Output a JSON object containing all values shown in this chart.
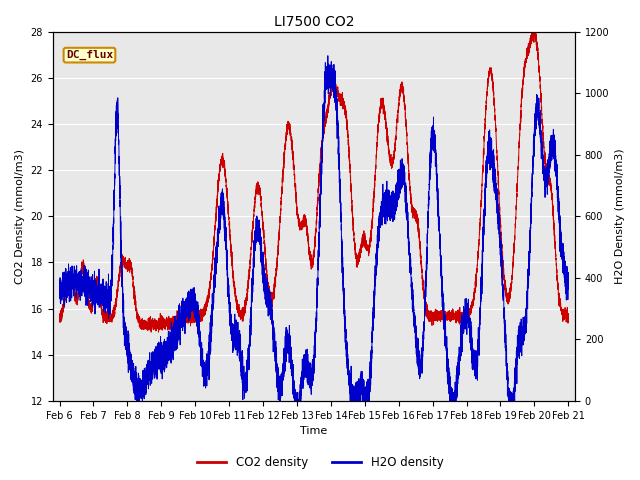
{
  "title": "LI7500 CO2",
  "xlabel": "Time",
  "ylabel_left": "CO2 Density (mmol/m3)",
  "ylabel_right": "H2O Density (mmol/m3)",
  "xlim_days": [
    5.8,
    21.2
  ],
  "ylim_left": [
    12,
    28
  ],
  "ylim_right": [
    0,
    1200
  ],
  "xtick_labels": [
    "Feb 6",
    "Feb 7",
    "Feb 8",
    "Feb 9",
    "Feb 10",
    "Feb 11",
    "Feb 12",
    "Feb 13",
    "Feb 14",
    "Feb 15",
    "Feb 16",
    "Feb 17",
    "Feb 18",
    "Feb 19",
    "Feb 20",
    "Feb 21"
  ],
  "xtick_positions": [
    6,
    7,
    8,
    9,
    10,
    11,
    12,
    13,
    14,
    15,
    16,
    17,
    18,
    19,
    20,
    21
  ],
  "yticks_left": [
    12,
    14,
    16,
    18,
    20,
    22,
    24,
    26,
    28
  ],
  "yticks_right": [
    0,
    200,
    400,
    600,
    800,
    1000,
    1200
  ],
  "co2_color": "#cc0000",
  "h2o_color": "#0000cc",
  "background_color": "#e8e8e8",
  "legend_label_co2": "CO2 density",
  "legend_label_h2o": "H2O density",
  "box_label": "DC_flux",
  "box_facecolor": "#ffffcc",
  "box_edgecolor": "#cc8800",
  "box_textcolor": "#660000",
  "figsize": [
    6.4,
    4.8
  ],
  "dpi": 100
}
